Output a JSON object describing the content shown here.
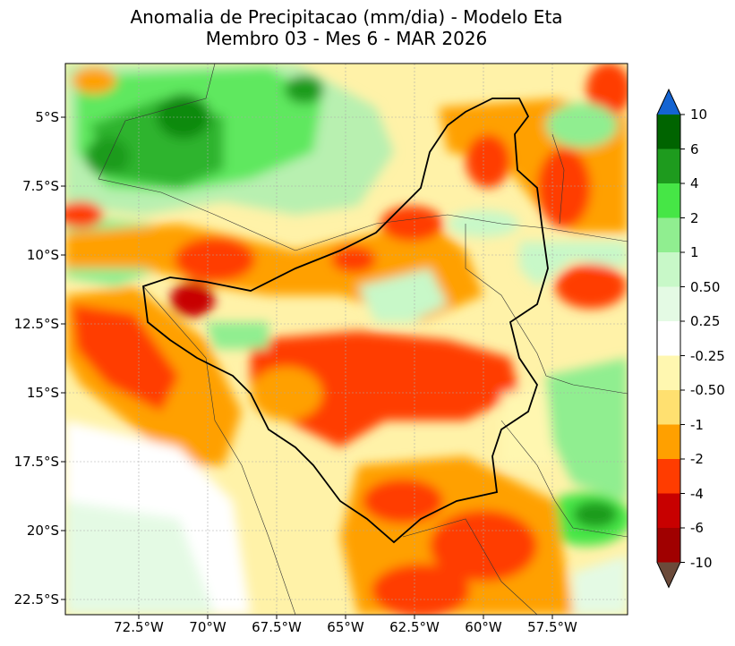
{
  "title": {
    "line1": "Anomalia de Precipitacao (mm/dia) - Modelo Eta",
    "line2": "Membro 03 - Mes 6 - MAR 2026"
  },
  "map": {
    "lat_ticks": [
      "5°S",
      "7.5°S",
      "10°S",
      "12.5°S",
      "15°S",
      "17.5°S",
      "20°S",
      "22.5°S"
    ],
    "lon_ticks": [
      "72.5°W",
      "70°W",
      "67.5°W",
      "65°W",
      "62.5°W",
      "60°W",
      "57.5°W"
    ],
    "lat_values": [
      -5,
      -7.5,
      -10,
      -12.5,
      -15,
      -17.5,
      -20,
      -22.5
    ],
    "lon_values": [
      -72.5,
      -70,
      -67.5,
      -65,
      -62.5,
      -60,
      -57.5
    ],
    "lon_range": [
      -75,
      -54.5
    ],
    "lat_range": [
      -23,
      -3
    ]
  },
  "colorbar": {
    "labels": [
      "10",
      "6",
      "4",
      "2",
      "1",
      "0.50",
      "0.25",
      "-0.25",
      "-0.50",
      "-1",
      "-2",
      "-4",
      "-6",
      "-10"
    ],
    "colors": [
      "#006400",
      "#1e9b1e",
      "#46e646",
      "#90ee90",
      "#c8f8c8",
      "#e4fae4",
      "#ffffff",
      "#fff7b0",
      "#ffe070",
      "#ffa000",
      "#ff3c00",
      "#c80000",
      "#a00000"
    ],
    "over_color": "#1464d2",
    "under_color": "#6b4a3a"
  }
}
